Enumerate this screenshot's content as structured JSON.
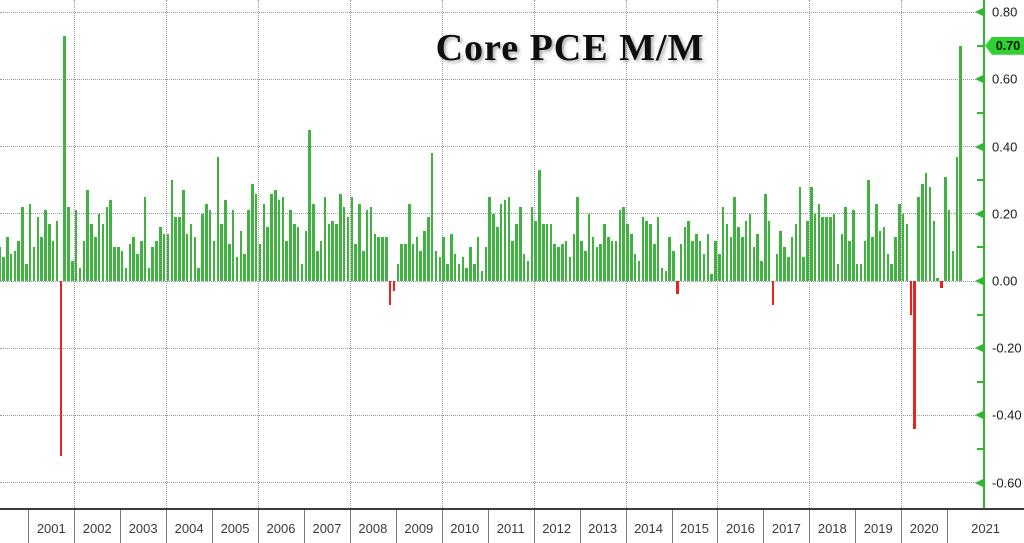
{
  "title": "Core PCE M/M",
  "y_axis": {
    "last_value_badge": "0.70",
    "major_tick_labels": [
      "0.80",
      "0.60",
      "0.40",
      "0.20",
      "0.00",
      "-0.20",
      "-0.40",
      "-0.60"
    ],
    "major_tick_values": [
      0.8,
      0.6,
      0.4,
      0.2,
      0.0,
      -0.2,
      -0.4,
      -0.6
    ],
    "minor_tick_values": [
      0.7,
      0.5,
      0.3,
      0.1,
      -0.1,
      -0.3,
      -0.5
    ]
  },
  "x_axis": {
    "year_labels": [
      "2001",
      "2002",
      "2003",
      "2004",
      "2005",
      "2006",
      "2007",
      "2008",
      "2009",
      "2010",
      "2011",
      "2012",
      "2013",
      "2014",
      "2015",
      "2016",
      "2017",
      "2018",
      "2019",
      "2020",
      "2021"
    ]
  },
  "colors": {
    "positive_bar": "#3fb23f",
    "negative_bar": "#ee2020",
    "axis_green": "#2eb82e",
    "badge_green": "#2fd032",
    "badge_text": "#041504",
    "grid": "#999999",
    "x_axis_line": "#3c3c3c",
    "year_divider": "#7a7a7a",
    "year_text": "#3a3a3a",
    "y_label_text": "#1c1c1c"
  },
  "chart_data": {
    "type": "bar",
    "title": "Core PCE M/M",
    "series_name": "Core PCE month-over-month % change",
    "frequency": "monthly",
    "start_month": "2000-05",
    "end_month": "2021-04",
    "last_value": 0.7,
    "ylim": [
      -0.68,
      0.87
    ],
    "y_tick_step_major": 0.2,
    "grid": "dotted",
    "legend": "none",
    "values": [
      0.1,
      0.07,
      0.13,
      0.08,
      0.09,
      0.12,
      0.22,
      0.05,
      0.23,
      0.1,
      0.19,
      0.13,
      0.21,
      0.17,
      0.12,
      0.18,
      -0.52,
      0.73,
      0.22,
      0.06,
      0.21,
      0.04,
      0.12,
      0.27,
      0.17,
      0.13,
      0.2,
      0.17,
      0.22,
      0.24,
      0.1,
      0.1,
      0.09,
      0.04,
      0.11,
      0.13,
      0.08,
      0.12,
      0.25,
      0.04,
      0.1,
      0.12,
      0.16,
      0.14,
      0.14,
      0.3,
      0.19,
      0.19,
      0.27,
      0.14,
      0.17,
      0.13,
      0.04,
      0.2,
      0.23,
      0.21,
      0.12,
      0.37,
      0.17,
      0.24,
      0.11,
      0.21,
      0.07,
      0.15,
      0.08,
      0.21,
      0.29,
      0.26,
      0.11,
      0.23,
      0.16,
      0.26,
      0.27,
      0.24,
      0.25,
      0.12,
      0.21,
      0.17,
      0.16,
      0.05,
      0.15,
      0.45,
      0.23,
      0.09,
      0.12,
      0.25,
      0.17,
      0.18,
      0.17,
      0.26,
      0.22,
      0.19,
      0.25,
      0.11,
      0.23,
      0.09,
      0.21,
      0.22,
      0.14,
      0.13,
      0.13,
      0.13,
      -0.07,
      -0.03,
      0.05,
      0.11,
      0.11,
      0.23,
      0.11,
      0.13,
      0.09,
      0.15,
      0.19,
      0.38,
      0.09,
      0.07,
      0.13,
      0.05,
      0.14,
      0.08,
      0.05,
      0.07,
      0.04,
      0.1,
      0.05,
      0.13,
      0.03,
      0.1,
      0.25,
      0.2,
      0.16,
      0.23,
      0.24,
      0.25,
      0.12,
      0.17,
      0.22,
      0.08,
      0.06,
      0.22,
      0.18,
      0.33,
      0.17,
      0.17,
      0.17,
      0.11,
      0.1,
      0.11,
      0.12,
      0.07,
      0.14,
      0.25,
      0.12,
      0.09,
      0.2,
      0.13,
      0.1,
      0.11,
      0.17,
      0.13,
      0.12,
      0.12,
      0.21,
      0.22,
      0.17,
      0.14,
      0.08,
      0.06,
      0.19,
      0.18,
      0.17,
      0.11,
      0.19,
      0.04,
      0.03,
      0.13,
      0.09,
      -0.04,
      0.11,
      0.16,
      0.18,
      0.12,
      0.14,
      0.12,
      0.08,
      0.14,
      0.02,
      0.12,
      0.08,
      0.22,
      0.17,
      0.13,
      0.25,
      0.16,
      0.13,
      0.18,
      0.2,
      0.1,
      0.14,
      0.06,
      0.26,
      0.18,
      -0.07,
      0.08,
      0.15,
      0.1,
      0.07,
      0.13,
      0.17,
      0.28,
      0.07,
      0.18,
      0.28,
      0.2,
      0.23,
      0.19,
      0.19,
      0.19,
      0.2,
      0.05,
      0.14,
      0.22,
      0.12,
      0.21,
      0.05,
      0.05,
      0.12,
      0.3,
      0.13,
      0.23,
      0.15,
      0.16,
      0.08,
      0.05,
      0.13,
      0.23,
      0.2,
      0.17,
      -0.1,
      -0.44,
      0.25,
      0.29,
      0.32,
      0.28,
      0.18,
      0.01,
      -0.02,
      0.31,
      0.21,
      0.09,
      0.37,
      0.7
    ]
  }
}
